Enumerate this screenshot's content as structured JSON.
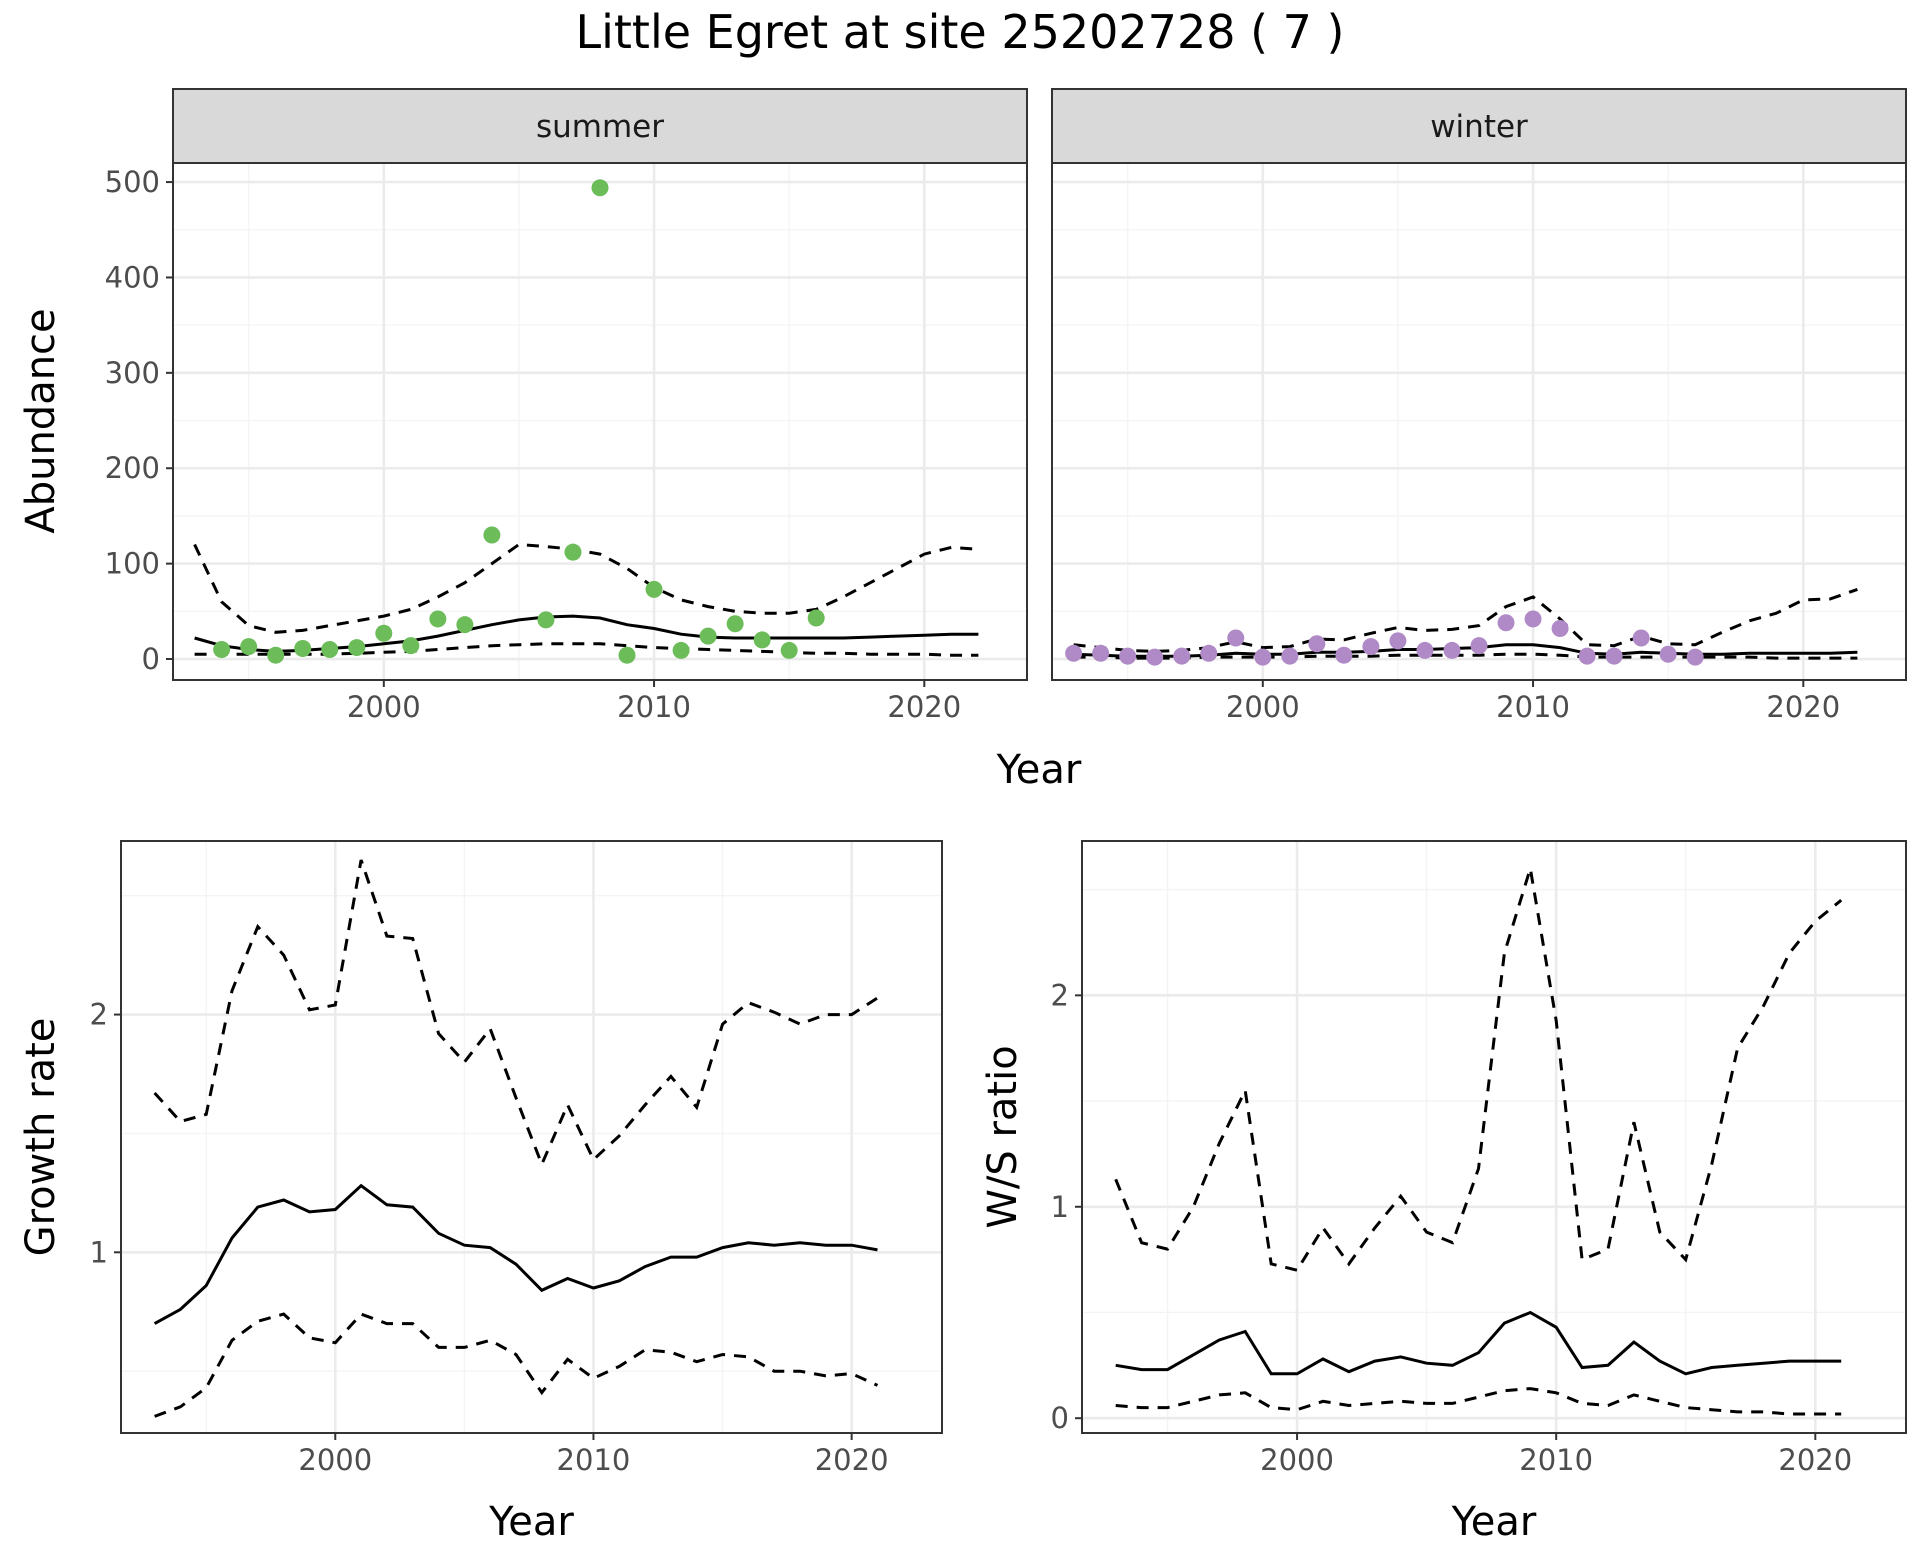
{
  "title": "Little Egret at site 25202728 ( 7 )",
  "chart_data": [
    {
      "type": "scatter",
      "panel": "abundance",
      "facets": [
        "summer",
        "winter"
      ],
      "xlabel": "Year",
      "ylabel": "Abundance",
      "xlim": [
        1992.2,
        2023.8
      ],
      "ylim": [
        -22,
        520
      ],
      "x_ticks": [
        2000,
        2010,
        2020
      ],
      "y_ticks": [
        0,
        100,
        200,
        300,
        400,
        500
      ],
      "grid": true,
      "series": [
        {
          "facet": "summer",
          "color": "#6cbd5a",
          "points": {
            "x": [
              1994,
              1995,
              1996,
              1997,
              1998,
              1999,
              2000,
              2001,
              2002,
              2003,
              2004,
              2006,
              2007,
              2008,
              2009,
              2010,
              2011,
              2012,
              2013,
              2014,
              2015,
              2016
            ],
            "y": [
              10,
              13,
              4,
              11,
              10,
              12,
              27,
              14,
              42,
              36,
              130,
              41,
              112,
              494,
              4,
              73,
              9,
              24,
              37,
              20,
              9,
              43
            ]
          },
          "trend": {
            "x": [
              1993,
              1994,
              1995,
              1996,
              1997,
              1998,
              1999,
              2000,
              2001,
              2002,
              2003,
              2004,
              2005,
              2006,
              2007,
              2008,
              2009,
              2010,
              2011,
              2012,
              2013,
              2014,
              2015,
              2016,
              2017,
              2018,
              2019,
              2020,
              2021,
              2022
            ],
            "y": [
              22,
              14,
              10,
              8,
              9,
              11,
              13,
              16,
              19,
              24,
              30,
              36,
              41,
              44,
              45,
              43,
              36,
              32,
              26,
              23,
              22,
              22,
              22,
              22,
              22,
              23,
              24,
              25,
              26,
              26
            ]
          },
          "upper": {
            "x": [
              1993,
              1994,
              1995,
              1996,
              1997,
              1998,
              1999,
              2000,
              2001,
              2002,
              2003,
              2004,
              2005,
              2006,
              2007,
              2008,
              2009,
              2010,
              2011,
              2012,
              2013,
              2014,
              2015,
              2016,
              2017,
              2018,
              2019,
              2020,
              2021,
              2022
            ],
            "y": [
              120,
              60,
              35,
              28,
              30,
              35,
              40,
              45,
              52,
              65,
              80,
              100,
              120,
              118,
              115,
              110,
              95,
              75,
              62,
              55,
              50,
              48,
              48,
              52,
              65,
              80,
              95,
              110,
              117,
              115
            ]
          },
          "lower": {
            "x": [
              1993,
              1994,
              1995,
              1996,
              1997,
              1998,
              1999,
              2000,
              2001,
              2002,
              2003,
              2004,
              2005,
              2006,
              2007,
              2008,
              2009,
              2010,
              2011,
              2012,
              2013,
              2014,
              2015,
              2016,
              2017,
              2018,
              2019,
              2020,
              2021,
              2022
            ],
            "y": [
              5,
              5,
              5,
              5,
              5,
              5,
              6,
              7,
              8,
              10,
              12,
              14,
              15,
              16,
              16,
              16,
              14,
              12,
              11,
              10,
              9,
              8,
              7,
              6,
              6,
              5,
              5,
              5,
              4,
              4
            ]
          }
        },
        {
          "facet": "winter",
          "color": "#b08ac6",
          "points": {
            "x": [
              1993,
              1994,
              1995,
              1996,
              1997,
              1998,
              1999,
              2000,
              2001,
              2002,
              2003,
              2004,
              2005,
              2006,
              2007,
              2008,
              2009,
              2010,
              2011,
              2012,
              2013,
              2014,
              2015,
              2016
            ],
            "y": [
              6,
              6,
              3,
              2,
              3,
              6,
              22,
              2,
              3,
              16,
              4,
              13,
              19,
              9,
              9,
              14,
              38,
              42,
              32,
              3,
              3,
              22,
              5,
              2
            ]
          },
          "trend": {
            "x": [
              1993,
              1994,
              1995,
              1996,
              1997,
              1998,
              1999,
              2000,
              2001,
              2002,
              2003,
              2004,
              2005,
              2006,
              2007,
              2008,
              2009,
              2010,
              2011,
              2012,
              2013,
              2014,
              2015,
              2016,
              2017,
              2018,
              2019,
              2020,
              2021,
              2022
            ],
            "y": [
              5,
              4,
              3,
              3,
              3,
              4,
              6,
              5,
              5,
              7,
              7,
              8,
              10,
              10,
              11,
              12,
              15,
              15,
              12,
              6,
              5,
              7,
              6,
              5,
              5,
              6,
              6,
              6,
              6,
              7
            ]
          },
          "upper": {
            "x": [
              1993,
              1994,
              1995,
              1996,
              1997,
              1998,
              1999,
              2000,
              2001,
              2002,
              2003,
              2004,
              2005,
              2006,
              2007,
              2008,
              2009,
              2010,
              2011,
              2012,
              2013,
              2014,
              2015,
              2016,
              2017,
              2018,
              2019,
              2020,
              2021,
              2022
            ],
            "y": [
              15,
              12,
              9,
              8,
              9,
              12,
              18,
              12,
              13,
              21,
              20,
              27,
              33,
              30,
              31,
              35,
              55,
              65,
              42,
              15,
              14,
              24,
              16,
              15,
              28,
              40,
              48,
              62,
              63,
              73
            ]
          },
          "lower": {
            "x": [
              1993,
              1994,
              1995,
              1996,
              1997,
              1998,
              1999,
              2000,
              2001,
              2002,
              2003,
              2004,
              2005,
              2006,
              2007,
              2008,
              2009,
              2010,
              2011,
              2012,
              2013,
              2014,
              2015,
              2016,
              2017,
              2018,
              2019,
              2020,
              2021,
              2022
            ],
            "y": [
              2,
              2,
              1,
              1,
              1,
              2,
              2,
              2,
              2,
              3,
              3,
              3,
              4,
              4,
              4,
              4,
              5,
              5,
              4,
              2,
              2,
              2,
              2,
              2,
              2,
              2,
              1,
              1,
              1,
              1
            ]
          }
        }
      ]
    },
    {
      "type": "line",
      "panel": "growth",
      "xlabel": "Year",
      "ylabel": "Growth rate",
      "xlim": [
        1991.7,
        2023.5
      ],
      "ylim": [
        0.24,
        2.73
      ],
      "x_ticks": [
        2000,
        2010,
        2020
      ],
      "y_ticks": [
        1,
        2
      ],
      "grid": true,
      "x": [
        1993,
        1994,
        1995,
        1996,
        1997,
        1998,
        1999,
        2000,
        2001,
        2002,
        2003,
        2004,
        2005,
        2006,
        2007,
        2008,
        2009,
        2010,
        2011,
        2012,
        2013,
        2014,
        2015,
        2016,
        2017,
        2018,
        2019,
        2020,
        2021
      ],
      "series": [
        {
          "style": "dashed",
          "values": [
            1.67,
            1.55,
            1.58,
            2.1,
            2.37,
            2.25,
            2.02,
            2.04,
            2.65,
            2.33,
            2.32,
            1.92,
            1.8,
            1.94,
            1.65,
            1.37,
            1.62,
            1.39,
            1.49,
            1.62,
            1.74,
            1.61,
            1.96,
            2.05,
            2.01,
            1.96,
            2.0,
            2.0,
            2.07
          ]
        },
        {
          "style": "solid",
          "values": [
            0.7,
            0.76,
            0.86,
            1.06,
            1.19,
            1.22,
            1.17,
            1.18,
            1.28,
            1.2,
            1.19,
            1.08,
            1.03,
            1.02,
            0.95,
            0.84,
            0.89,
            0.85,
            0.88,
            0.94,
            0.98,
            0.98,
            1.02,
            1.04,
            1.03,
            1.04,
            1.03,
            1.03,
            1.01
          ]
        },
        {
          "style": "dashed",
          "values": [
            0.31,
            0.35,
            0.43,
            0.63,
            0.71,
            0.74,
            0.64,
            0.62,
            0.74,
            0.7,
            0.7,
            0.6,
            0.6,
            0.63,
            0.57,
            0.41,
            0.55,
            0.47,
            0.52,
            0.59,
            0.58,
            0.54,
            0.57,
            0.56,
            0.5,
            0.5,
            0.48,
            0.49,
            0.44
          ]
        }
      ]
    },
    {
      "type": "line",
      "panel": "ratio",
      "xlabel": "Year",
      "ylabel": "W/S ratio",
      "xlim": [
        1991.7,
        2023.5
      ],
      "ylim": [
        -0.07,
        2.73
      ],
      "x_ticks": [
        2000,
        2010,
        2020
      ],
      "y_ticks": [
        0,
        1,
        2
      ],
      "grid": true,
      "x": [
        1993,
        1994,
        1995,
        1996,
        1997,
        1998,
        1999,
        2000,
        2001,
        2002,
        2003,
        2004,
        2005,
        2006,
        2007,
        2008,
        2009,
        2010,
        2011,
        2012,
        2013,
        2014,
        2015,
        2016,
        2017,
        2018,
        2019,
        2020,
        2021
      ],
      "series": [
        {
          "style": "dashed",
          "values": [
            1.13,
            0.83,
            0.8,
            1.0,
            1.3,
            1.55,
            0.73,
            0.7,
            0.9,
            0.73,
            0.9,
            1.05,
            0.88,
            0.83,
            1.18,
            2.2,
            2.6,
            1.88,
            0.75,
            0.8,
            1.4,
            0.88,
            0.75,
            1.2,
            1.75,
            1.95,
            2.2,
            2.35,
            2.45
          ]
        },
        {
          "style": "solid",
          "values": [
            0.25,
            0.23,
            0.23,
            0.3,
            0.37,
            0.41,
            0.21,
            0.21,
            0.28,
            0.22,
            0.27,
            0.29,
            0.26,
            0.25,
            0.31,
            0.45,
            0.5,
            0.43,
            0.24,
            0.25,
            0.36,
            0.27,
            0.21,
            0.24,
            0.25,
            0.26,
            0.27,
            0.27,
            0.27
          ]
        },
        {
          "style": "dashed",
          "values": [
            0.06,
            0.05,
            0.05,
            0.08,
            0.11,
            0.12,
            0.05,
            0.04,
            0.08,
            0.06,
            0.07,
            0.08,
            0.07,
            0.07,
            0.1,
            0.13,
            0.14,
            0.12,
            0.07,
            0.06,
            0.11,
            0.08,
            0.05,
            0.04,
            0.03,
            0.03,
            0.02,
            0.02,
            0.02
          ]
        }
      ]
    }
  ]
}
